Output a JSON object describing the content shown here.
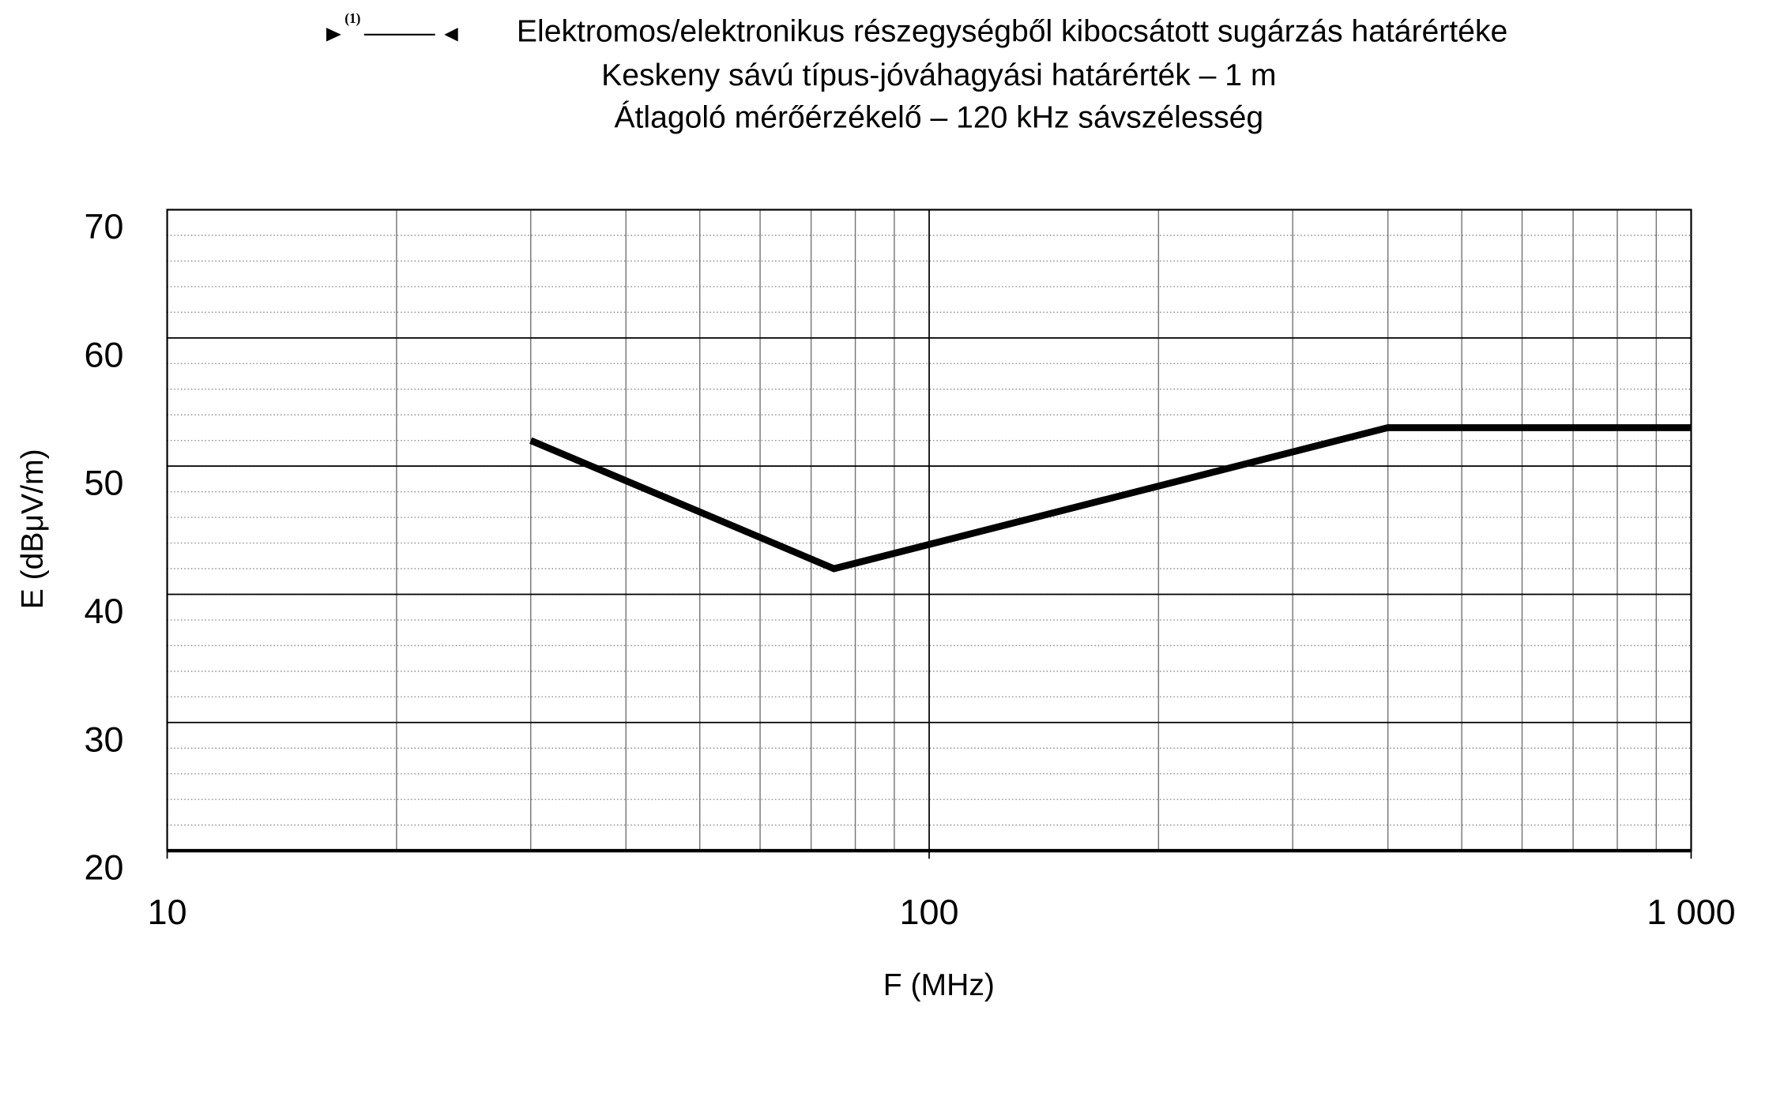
{
  "chart_data": {
    "type": "line",
    "marker": "(1)",
    "title": "Elektromos/elektronikus részegységből kibocsátott sugárzás határértéke",
    "subtitle": [
      "Keskeny sávú típus-jóváhagyási határérték – 1 m",
      "Átlagoló mérőérzékelő – 120 kHz sávszélesség"
    ],
    "xlabel": "F (MHz)",
    "ylabel": "E (dBμV/m)",
    "xscale": "log",
    "x": [
      30,
      75,
      400,
      1000
    ],
    "series": [
      {
        "color": "#000000",
        "values": [
          52,
          42,
          53,
          53
        ]
      }
    ],
    "xlim": [
      10,
      1000
    ],
    "xticks": [
      10,
      100,
      {
        "value": 1000,
        "label": "1 000"
      }
    ],
    "ylim": [
      20,
      70
    ],
    "yticks": [
      20,
      30,
      40,
      50,
      60,
      70
    ],
    "grid": true
  }
}
